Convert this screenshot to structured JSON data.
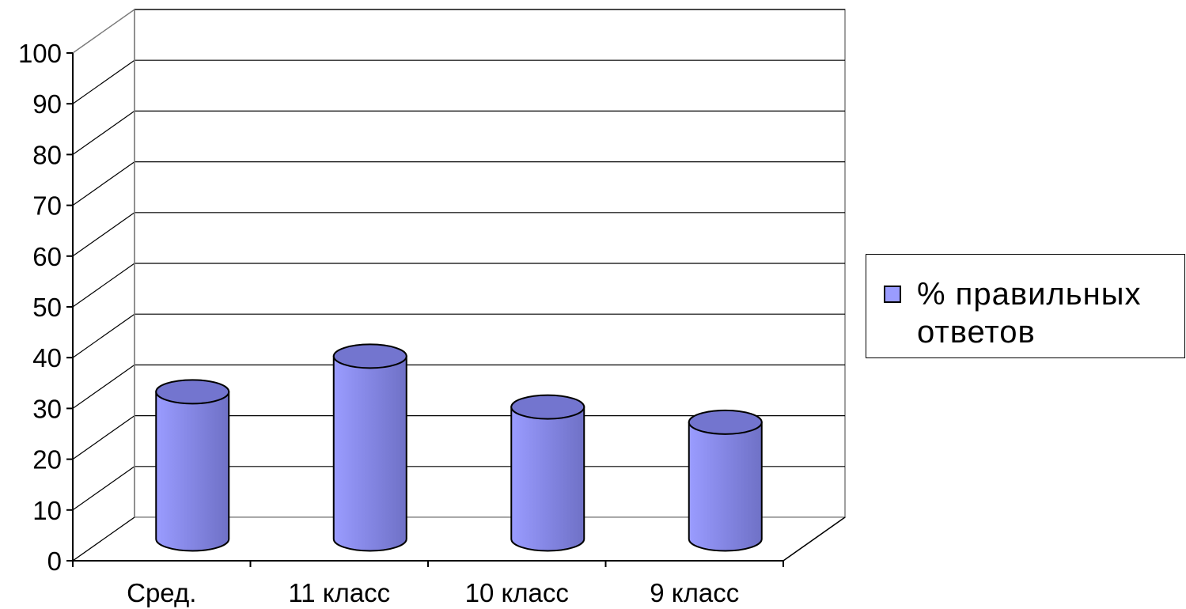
{
  "chart_data": {
    "type": "bar",
    "categories": [
      "Сред.",
      "11 класс",
      "10 класс",
      "9 класс"
    ],
    "series": [
      {
        "name": "% правильных ответов",
        "values": [
          29,
          36,
          26,
          23
        ]
      }
    ],
    "title": "",
    "xlabel": "",
    "ylabel": "",
    "ylim": [
      0,
      100
    ],
    "yticks": [
      0,
      10,
      20,
      30,
      40,
      50,
      60,
      70,
      80,
      90,
      100
    ],
    "grid": true,
    "legend_position": "right",
    "style": "3d-cylinder"
  },
  "colors": {
    "bar_light": "#9a9cff",
    "bar_mid": "#8688e6",
    "bar_dark": "#6f71c6",
    "bar_top": "#7375cf",
    "grid": "#000000",
    "background": "#ffffff"
  }
}
